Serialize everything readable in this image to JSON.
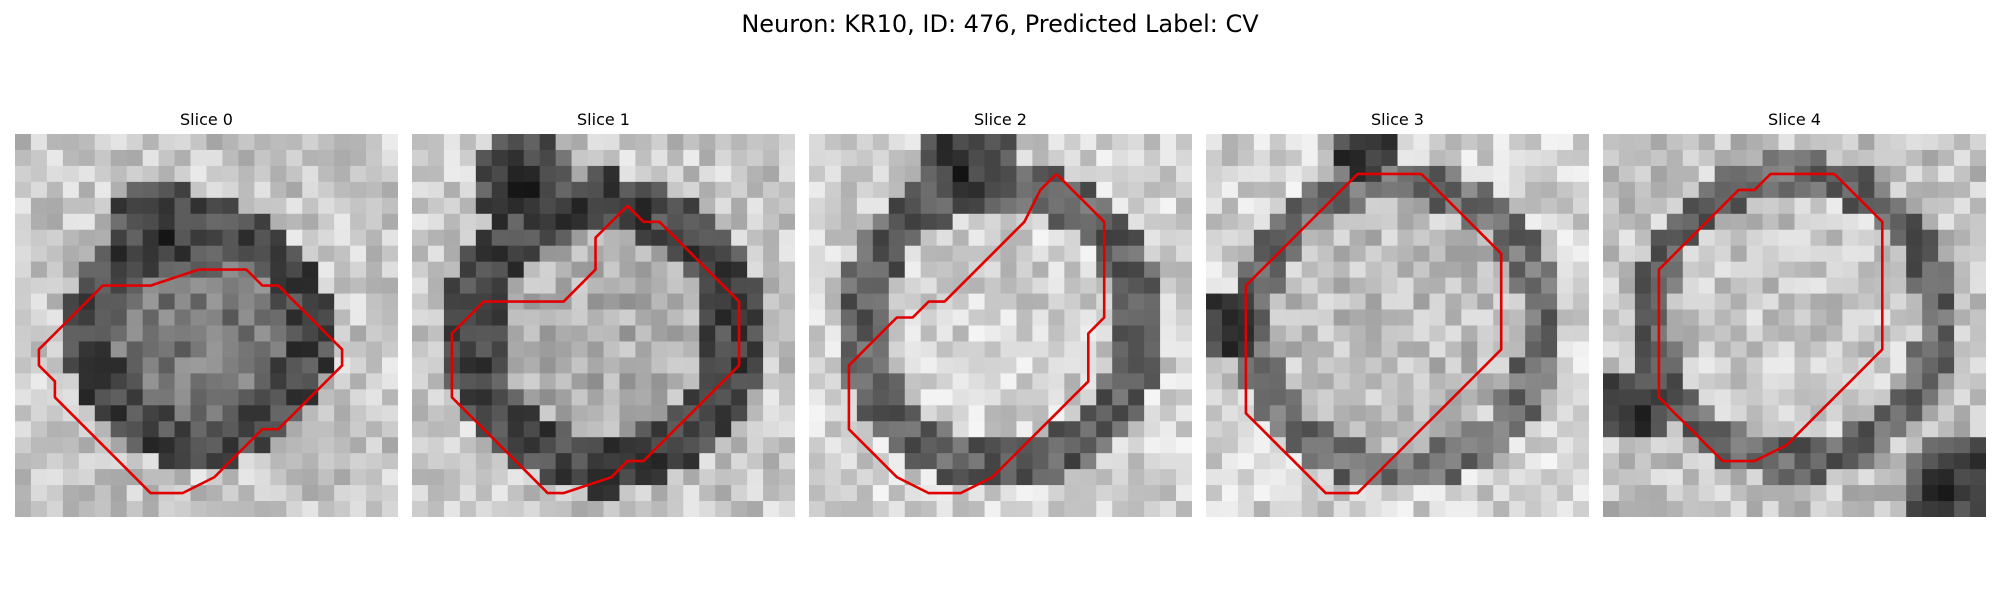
{
  "figure": {
    "title": "Neuron: KR10, ID: 476, Predicted Label: CV",
    "contour_color": "#e00000",
    "colormap": "gray",
    "panels": [
      {
        "title": "Slice 0",
        "contour": [
          [
            11,
            8
          ],
          [
            14,
            8
          ],
          [
            15,
            9
          ],
          [
            16,
            9
          ],
          [
            17,
            10
          ],
          [
            18,
            11
          ],
          [
            19,
            12
          ],
          [
            20,
            13
          ],
          [
            20,
            14
          ],
          [
            19,
            15
          ],
          [
            18,
            16
          ],
          [
            17,
            17
          ],
          [
            16,
            18
          ],
          [
            15,
            18
          ],
          [
            14,
            19
          ],
          [
            13,
            20
          ],
          [
            12,
            21
          ],
          [
            10,
            22
          ],
          [
            8,
            22
          ],
          [
            7,
            21
          ],
          [
            6,
            20
          ],
          [
            5,
            19
          ],
          [
            4,
            18
          ],
          [
            3,
            17
          ],
          [
            2,
            16
          ],
          [
            2,
            15
          ],
          [
            1,
            14
          ],
          [
            1,
            13
          ],
          [
            2,
            12
          ],
          [
            3,
            11
          ],
          [
            4,
            10
          ],
          [
            5,
            9
          ],
          [
            8,
            9
          ],
          [
            11,
            8
          ]
        ]
      },
      {
        "title": "Slice 1",
        "contour": [
          [
            13,
            4
          ],
          [
            14,
            5
          ],
          [
            15,
            5
          ],
          [
            16,
            6
          ],
          [
            17,
            7
          ],
          [
            18,
            8
          ],
          [
            19,
            9
          ],
          [
            20,
            10
          ],
          [
            20,
            12
          ],
          [
            20,
            14
          ],
          [
            19,
            15
          ],
          [
            18,
            16
          ],
          [
            17,
            17
          ],
          [
            16,
            18
          ],
          [
            15,
            19
          ],
          [
            14,
            20
          ],
          [
            13,
            20
          ],
          [
            12,
            21
          ],
          [
            9,
            22
          ],
          [
            8,
            22
          ],
          [
            7,
            21
          ],
          [
            6,
            20
          ],
          [
            5,
            19
          ],
          [
            4,
            18
          ],
          [
            3,
            17
          ],
          [
            2,
            16
          ],
          [
            2,
            14
          ],
          [
            2,
            12
          ],
          [
            3,
            11
          ],
          [
            4,
            10
          ],
          [
            5,
            10
          ],
          [
            7,
            10
          ],
          [
            9,
            10
          ],
          [
            10,
            9
          ],
          [
            11,
            8
          ],
          [
            11,
            6
          ],
          [
            12,
            5
          ],
          [
            13,
            4
          ]
        ]
      },
      {
        "title": "Slice 2",
        "contour": [
          [
            15,
            2
          ],
          [
            16,
            3
          ],
          [
            17,
            4
          ],
          [
            18,
            5
          ],
          [
            18,
            7
          ],
          [
            18,
            9
          ],
          [
            18,
            11
          ],
          [
            17,
            12
          ],
          [
            17,
            14
          ],
          [
            17,
            15
          ],
          [
            16,
            16
          ],
          [
            15,
            17
          ],
          [
            14,
            18
          ],
          [
            13,
            19
          ],
          [
            12,
            20
          ],
          [
            11,
            21
          ],
          [
            9,
            22
          ],
          [
            7,
            22
          ],
          [
            5,
            21
          ],
          [
            4,
            20
          ],
          [
            3,
            19
          ],
          [
            2,
            18
          ],
          [
            2,
            16
          ],
          [
            2,
            14
          ],
          [
            3,
            13
          ],
          [
            4,
            12
          ],
          [
            5,
            11
          ],
          [
            6,
            11
          ],
          [
            7,
            10
          ],
          [
            8,
            10
          ],
          [
            9,
            9
          ],
          [
            10,
            8
          ],
          [
            11,
            7
          ],
          [
            12,
            6
          ],
          [
            13,
            5
          ],
          [
            14,
            3
          ],
          [
            15,
            2
          ]
        ]
      },
      {
        "title": "Slice 3",
        "contour": [
          [
            13,
            2
          ],
          [
            14,
            3
          ],
          [
            15,
            4
          ],
          [
            16,
            5
          ],
          [
            17,
            6
          ],
          [
            18,
            7
          ],
          [
            18,
            9
          ],
          [
            18,
            11
          ],
          [
            18,
            13
          ],
          [
            17,
            14
          ],
          [
            16,
            15
          ],
          [
            15,
            16
          ],
          [
            14,
            17
          ],
          [
            13,
            18
          ],
          [
            12,
            19
          ],
          [
            11,
            20
          ],
          [
            10,
            21
          ],
          [
            9,
            22
          ],
          [
            7,
            22
          ],
          [
            6,
            21
          ],
          [
            5,
            20
          ],
          [
            4,
            19
          ],
          [
            3,
            18
          ],
          [
            2,
            17
          ],
          [
            2,
            15
          ],
          [
            2,
            13
          ],
          [
            2,
            11
          ],
          [
            2,
            9
          ],
          [
            3,
            8
          ],
          [
            4,
            7
          ],
          [
            5,
            6
          ],
          [
            6,
            5
          ],
          [
            7,
            4
          ],
          [
            8,
            3
          ],
          [
            9,
            2
          ],
          [
            11,
            2
          ],
          [
            13,
            2
          ]
        ]
      },
      {
        "title": "Slice 4",
        "contour": [
          [
            14,
            2
          ],
          [
            15,
            3
          ],
          [
            16,
            4
          ],
          [
            17,
            5
          ],
          [
            17,
            7
          ],
          [
            17,
            9
          ],
          [
            17,
            11
          ],
          [
            17,
            13
          ],
          [
            16,
            14
          ],
          [
            15,
            15
          ],
          [
            14,
            16
          ],
          [
            13,
            17
          ],
          [
            12,
            18
          ],
          [
            11,
            19
          ],
          [
            9,
            20
          ],
          [
            7,
            20
          ],
          [
            6,
            19
          ],
          [
            5,
            18
          ],
          [
            4,
            17
          ],
          [
            3,
            16
          ],
          [
            3,
            14
          ],
          [
            3,
            12
          ],
          [
            3,
            10
          ],
          [
            3,
            8
          ],
          [
            4,
            7
          ],
          [
            5,
            6
          ],
          [
            6,
            5
          ],
          [
            7,
            4
          ],
          [
            8,
            3
          ],
          [
            9,
            3
          ],
          [
            10,
            2
          ],
          [
            12,
            2
          ],
          [
            14,
            2
          ]
        ]
      }
    ]
  }
}
